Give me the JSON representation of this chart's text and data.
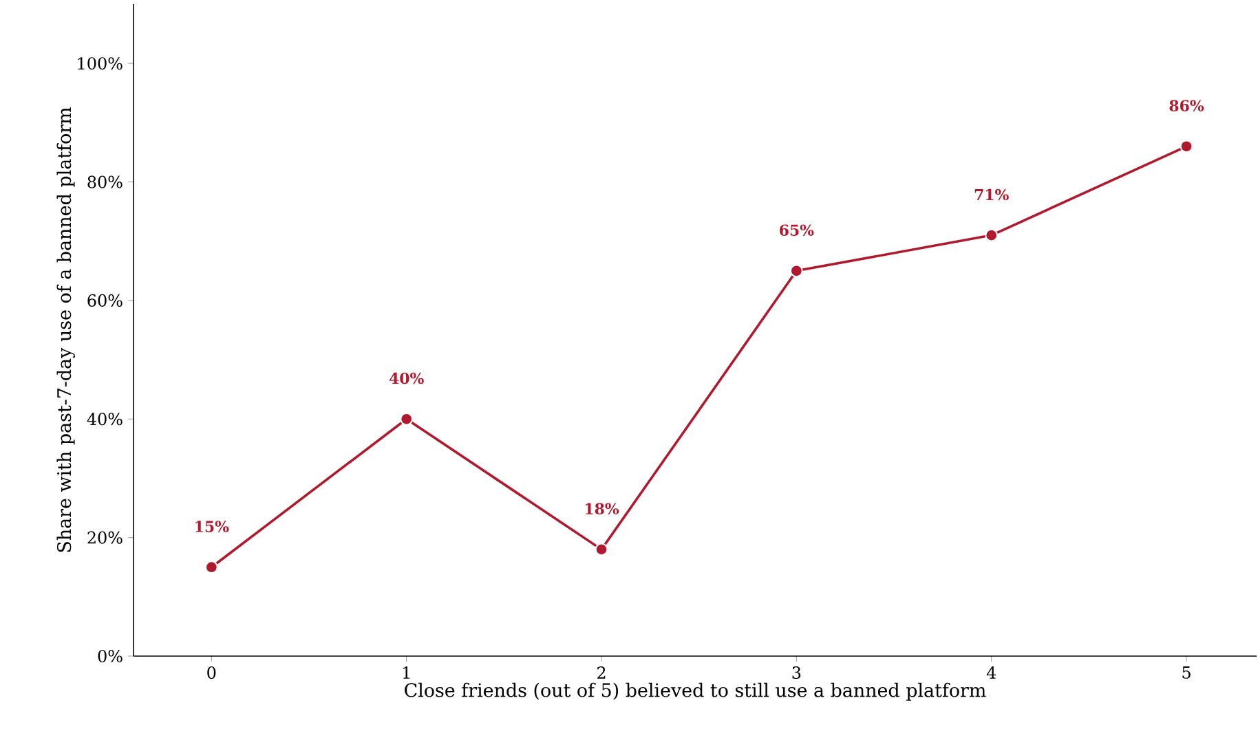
{
  "chart_data": {
    "type": "line",
    "xlabel": "Close friends (out of 5) believed to still use a banned platform",
    "ylabel": "Share with past-7-day use of a banned platform",
    "x": [
      0,
      1,
      2,
      3,
      4,
      5
    ],
    "series": [
      {
        "color": "#b01a2e",
        "values": [
          15,
          40,
          18,
          65,
          71,
          86
        ],
        "value_labels": [
          "15%",
          "40%",
          "18%",
          "65%",
          "71%",
          "86%"
        ]
      }
    ],
    "xlim": [
      -0.4,
      5.36
    ],
    "xticks": [
      0,
      1,
      2,
      3,
      4,
      5
    ],
    "ylim": [
      0,
      110
    ],
    "yticks": [
      {
        "value": 0,
        "label": "0%"
      },
      {
        "value": 20,
        "label": "20%"
      },
      {
        "value": 40,
        "label": "40%"
      },
      {
        "value": 60,
        "label": "60%"
      },
      {
        "value": 80,
        "label": "80%"
      },
      {
        "value": 100,
        "label": "100%"
      }
    ],
    "marker": "circle",
    "line_style": "solid"
  }
}
